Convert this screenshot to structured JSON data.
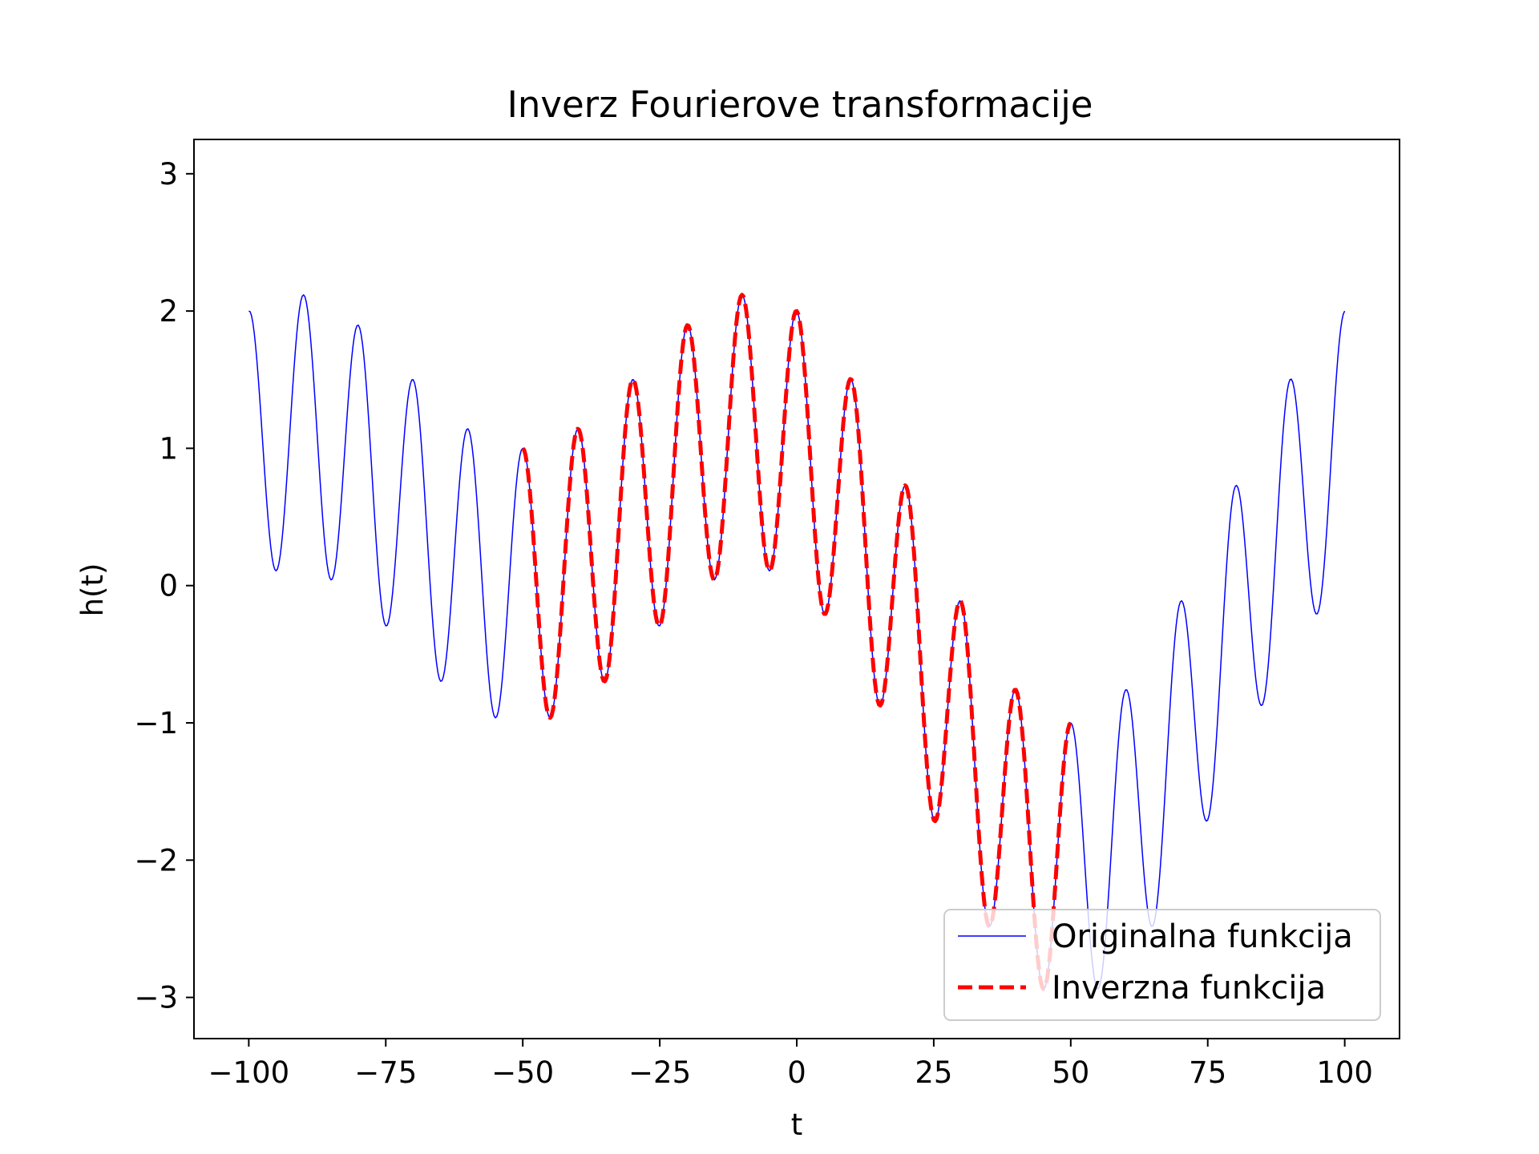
{
  "chart_data": {
    "type": "line",
    "title": "Inverz Fourierove transformacije",
    "xlabel": "t",
    "ylabel": "h(t)",
    "xlim": [
      -110,
      110
    ],
    "ylim": [
      -3.3,
      3.25
    ],
    "xticks": [
      -100,
      -75,
      -50,
      -25,
      0,
      25,
      50,
      75,
      100
    ],
    "xtick_labels": [
      "−100",
      "−75",
      "−50",
      "−25",
      "0",
      "25",
      "50",
      "75",
      "100"
    ],
    "yticks": [
      -3,
      -2,
      -1,
      0,
      1,
      2,
      3
    ],
    "ytick_labels": [
      "−3",
      "−2",
      "−1",
      "0",
      "1",
      "2",
      "3"
    ],
    "legend_position": "lower-right",
    "function": "cos(2πt/10) + cos(2πt/100) − sin(2πt/200)",
    "series": [
      {
        "name": "Originalna funkcija",
        "color": "#0000ff",
        "style": "solid",
        "x_range": [
          -100,
          100
        ],
        "x_step": 0.25
      },
      {
        "name": "Inverzna funkcija",
        "color": "#ff0000",
        "style": "dashed",
        "x_range": [
          -50,
          50
        ],
        "x_step": 0.25
      }
    ]
  }
}
